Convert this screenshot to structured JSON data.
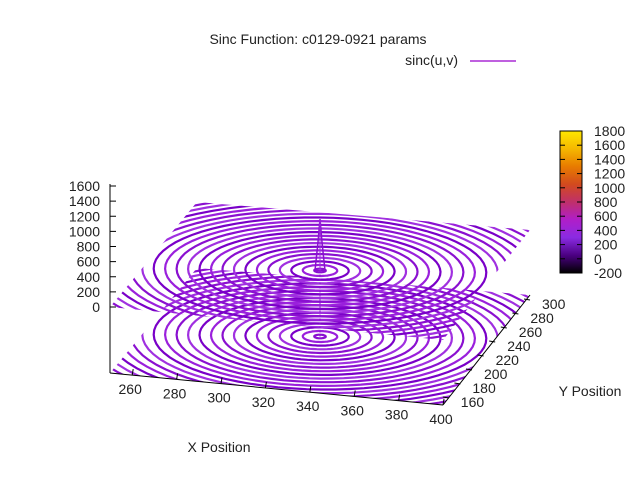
{
  "chart_data": {
    "type": "surface",
    "title": "Sinc Function: c0129-0921 params",
    "legend": {
      "label": "sinc(u,v)",
      "color": "#9900cc",
      "position": "top-right"
    },
    "xlabel": "X Position",
    "ylabel": "Y Position",
    "zlabel": "",
    "xlim": [
      250,
      400
    ],
    "ylim": [
      150,
      300
    ],
    "zlim": [
      0,
      1700
    ],
    "x_ticks": [
      "260",
      "280",
      "300",
      "320",
      "340",
      "360",
      "380",
      "400"
    ],
    "y_ticks": [
      "160",
      "180",
      "200",
      "220",
      "240",
      "260",
      "280",
      "300"
    ],
    "z_ticks": [
      "0",
      "200",
      "400",
      "600",
      "800",
      "1000",
      "1200",
      "1400",
      "1600"
    ],
    "center": {
      "x": 325,
      "y": 225
    },
    "peak_value": 1680,
    "base_value": 0,
    "surface_levels": [
      0,
      1000
    ],
    "colorbar": {
      "range": [
        -200,
        1800
      ],
      "ticks": [
        "-200",
        "0",
        "200",
        "400",
        "600",
        "800",
        "1000",
        "1200",
        "1400",
        "1600",
        "1800"
      ],
      "palette": [
        "#000000",
        "#4b0082",
        "#8a2be2",
        "#b01ec8",
        "#c0306a",
        "#d24a1e",
        "#e87b00",
        "#f5b800",
        "#ffe600"
      ]
    },
    "grid": false
  }
}
